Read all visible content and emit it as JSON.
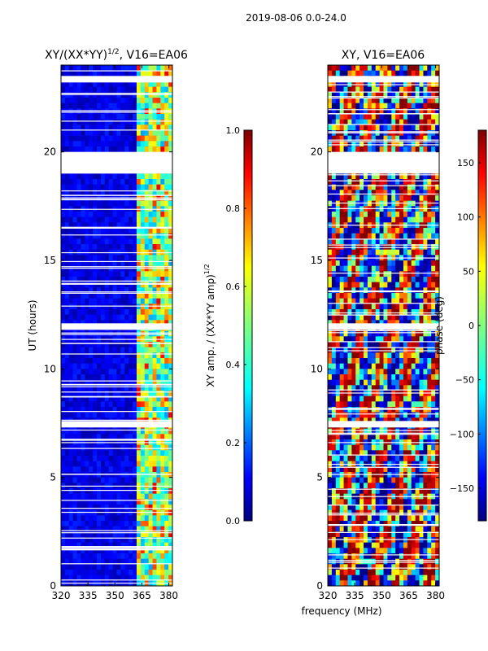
{
  "suptitle": "2019-08-06 0.0-24.0",
  "shared_xlabel": "frequency (MHz)",
  "chart_data": [
    {
      "type": "heatmap",
      "title": "XY/(XX*YY)^1/2, V16=EA06",
      "title_main": "XY/(XX*YY)",
      "title_exp": "1/2",
      "title_tail": ", V16=EA06",
      "xlabel": "frequency (MHz)",
      "ylabel": "UT (hours)",
      "xlim": [
        320,
        382
      ],
      "ylim": [
        0,
        24
      ],
      "xticks": [
        320,
        335,
        350,
        365,
        380
      ],
      "yticks": [
        0,
        5,
        10,
        15,
        20
      ],
      "colormap": "jet",
      "colorbar": {
        "label": "XY amp. / (XX*YY amp)^1/2",
        "label_main": "XY amp. / (XX*YY amp)",
        "label_exp": "1/2",
        "range": [
          0.0,
          1.0
        ],
        "ticks": [
          "0.0",
          "0.2",
          "0.4",
          "0.6",
          "0.8",
          "1.0"
        ]
      },
      "blank_time_ranges_hours": [
        [
          19.0,
          20.0
        ],
        [
          11.8,
          12.1
        ],
        [
          7.3,
          7.6
        ],
        [
          23.2,
          23.5
        ]
      ],
      "bright_band_MHz": [
        362,
        382
      ]
    },
    {
      "type": "heatmap",
      "title": "XY, V16=EA06",
      "xlabel": "frequency (MHz)",
      "ylabel": "",
      "xlim": [
        320,
        382
      ],
      "ylim": [
        0,
        24
      ],
      "xticks": [
        320,
        335,
        350,
        365,
        380
      ],
      "yticks": [
        0,
        5,
        10,
        15,
        20
      ],
      "colormap": "jet",
      "colorbar": {
        "label": "phase (deg)",
        "range": [
          -180,
          180
        ],
        "ticks": [
          "150",
          "100",
          "50",
          "0",
          "−50",
          "−100",
          "−150"
        ]
      },
      "blank_time_ranges_hours": [
        [
          19.0,
          20.0
        ],
        [
          11.8,
          12.1
        ],
        [
          7.3,
          7.6
        ],
        [
          23.2,
          23.5
        ]
      ]
    }
  ],
  "colors": {
    "jet_stops": [
      "#00007f",
      "#0000ff",
      "#007fff",
      "#00ffff",
      "#7fff7f",
      "#ffff00",
      "#ff7f00",
      "#ff0000",
      "#7f0000"
    ]
  }
}
